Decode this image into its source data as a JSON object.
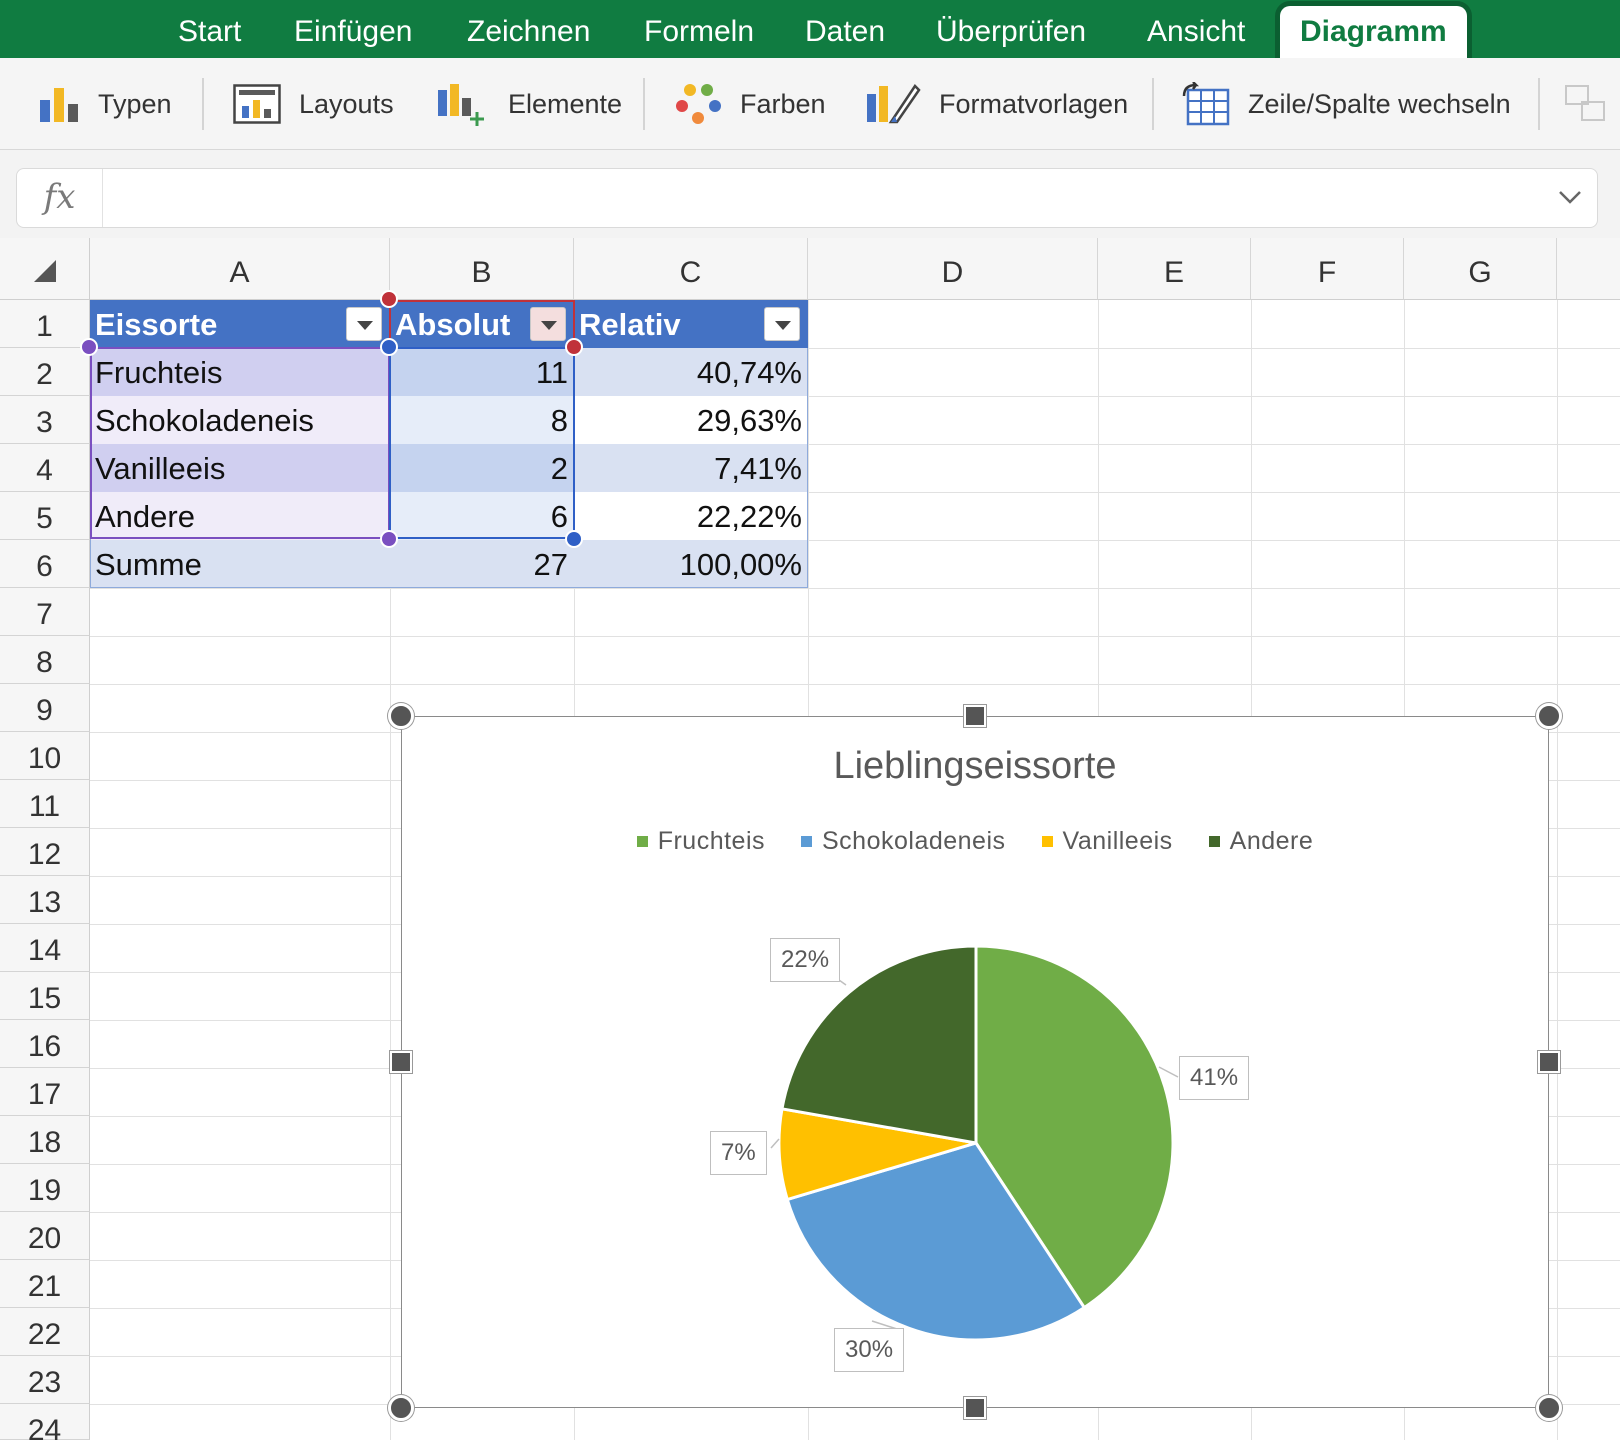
{
  "ribbon": {
    "tabs": [
      {
        "label": "Start"
      },
      {
        "label": "Einfügen"
      },
      {
        "label": "Zeichnen"
      },
      {
        "label": "Formeln"
      },
      {
        "label": "Daten"
      },
      {
        "label": "Überprüfen"
      },
      {
        "label": "Ansicht"
      },
      {
        "label": "Diagramm"
      }
    ],
    "active_tab": "Diagramm"
  },
  "toolbar": {
    "types": "Typen",
    "layouts": "Layouts",
    "elements": "Elemente",
    "colors": "Farben",
    "styles": "Formatvorlagen",
    "switch_row_col": "Zeile/Spalte wechseln"
  },
  "formula_bar": {
    "fx_label": "fx",
    "value": ""
  },
  "sheet": {
    "columns": [
      "A",
      "B",
      "C",
      "D",
      "E",
      "F",
      "G"
    ],
    "rows": [
      "1",
      "2",
      "3",
      "4",
      "5",
      "6",
      "7",
      "8",
      "9",
      "10",
      "11",
      "12",
      "13",
      "14",
      "15",
      "16",
      "17",
      "18",
      "19",
      "20",
      "21",
      "22",
      "23",
      "24"
    ],
    "table_headers": [
      "Eissorte",
      "Absolut",
      "Relativ"
    ],
    "table_rows": [
      [
        "Fruchteis",
        "11",
        "40,74%"
      ],
      [
        "Schokoladeneis",
        "8",
        "29,63%"
      ],
      [
        "Vanilleeis",
        "2",
        "7,41%"
      ],
      [
        "Andere",
        "6",
        "22,22%"
      ],
      [
        "Summe",
        "27",
        "100,00%"
      ]
    ]
  },
  "chart_data": {
    "type": "pie",
    "title": "Lieblingseissorte",
    "categories": [
      "Fruchteis",
      "Schokoladeneis",
      "Vanilleeis",
      "Andere"
    ],
    "values": [
      11,
      8,
      2,
      6
    ],
    "data_labels": [
      "41%",
      "30%",
      "7%",
      "22%"
    ],
    "colors": [
      "#70ad47",
      "#5b9bd5",
      "#ffc000",
      "#43682b"
    ],
    "legend_position": "top"
  }
}
